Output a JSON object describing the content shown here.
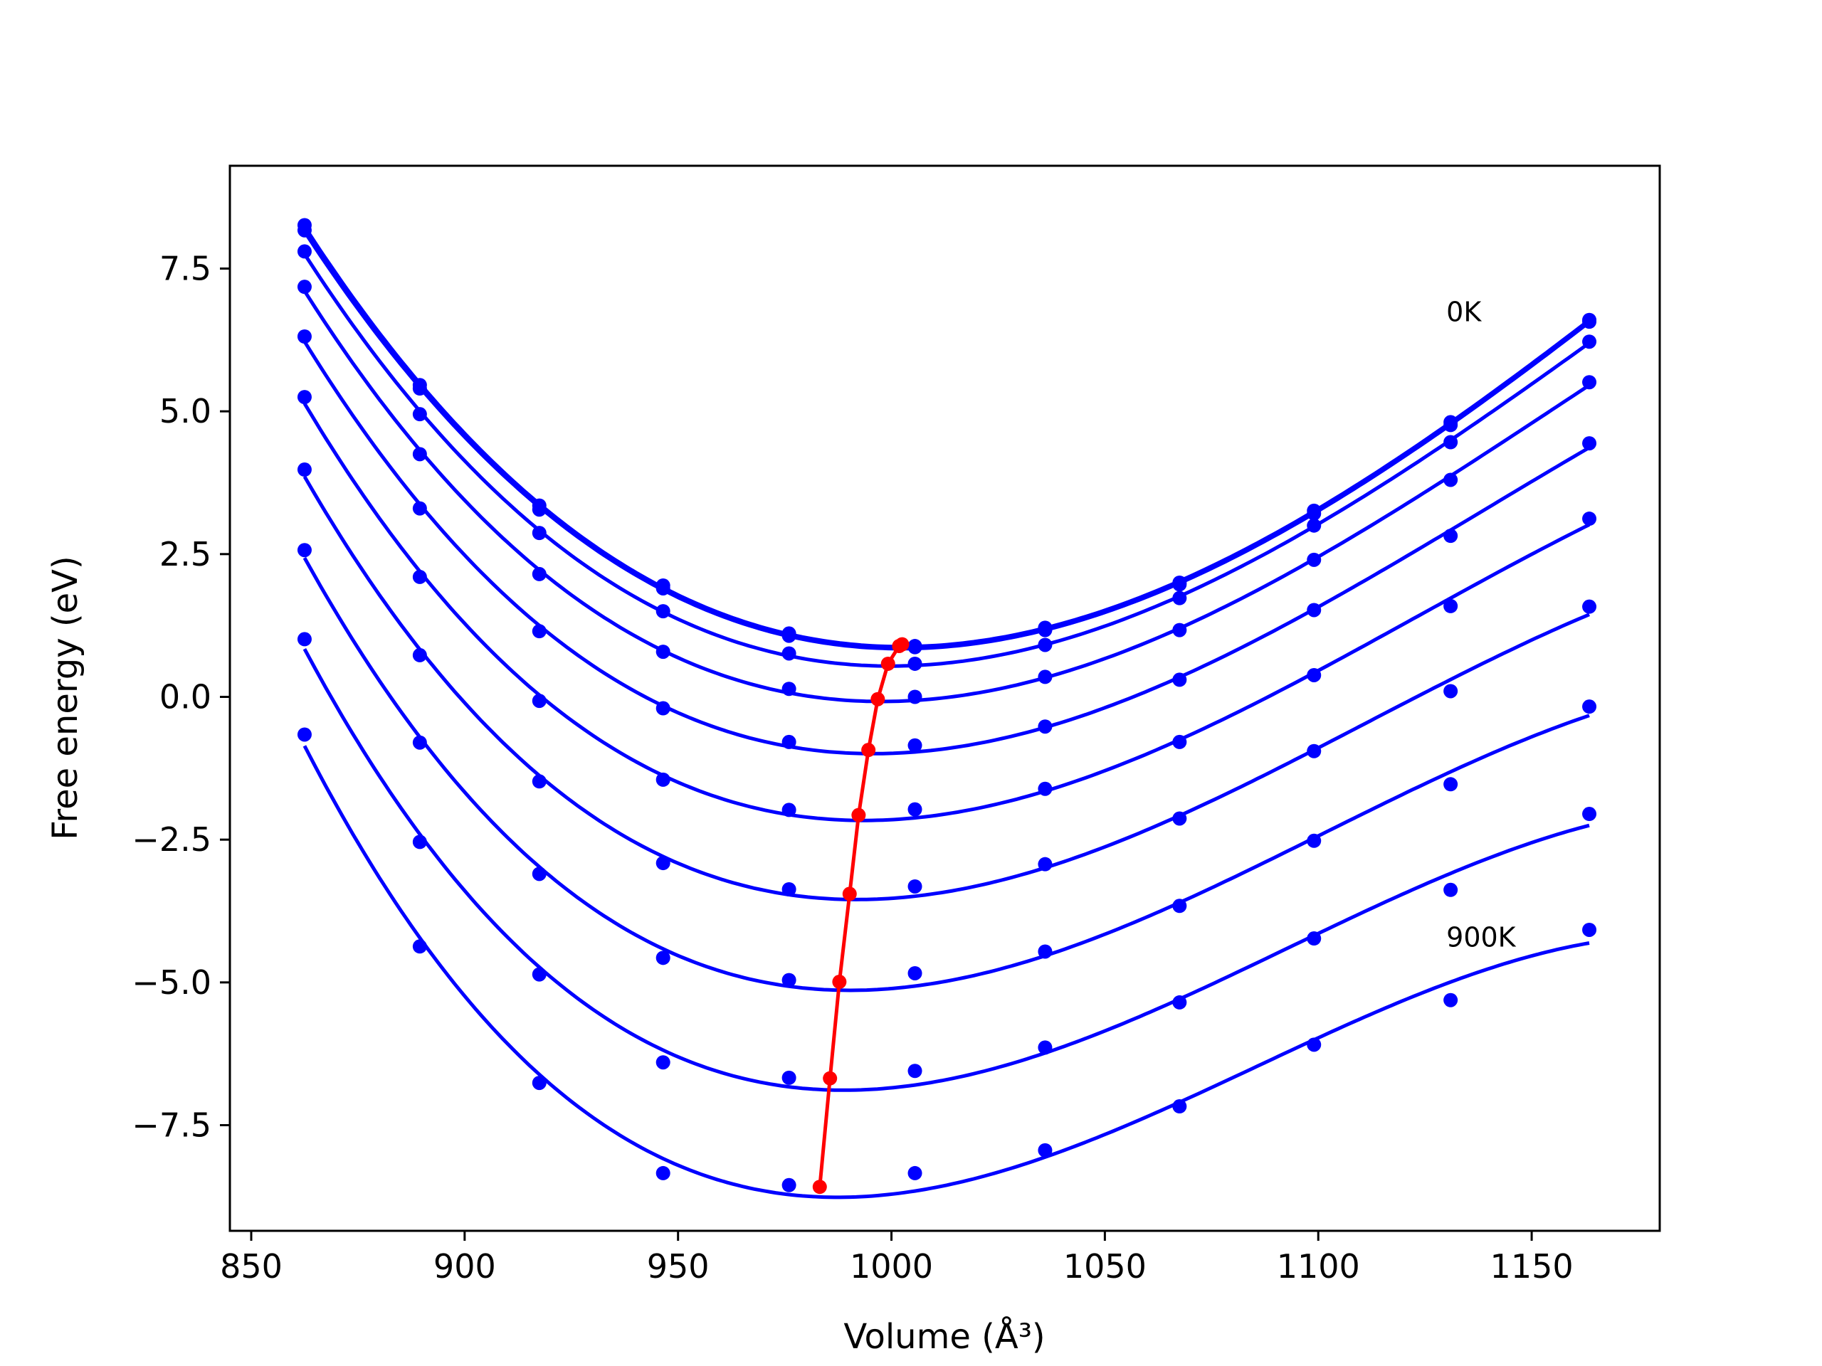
{
  "chart_data": {
    "type": "line",
    "title": "",
    "xlabel": "Volume (Å³)",
    "ylabel": "Free energy (eV)",
    "xlim": [
      845,
      1180
    ],
    "ylim": [
      -9.35,
      9.3
    ],
    "xticks": [
      850,
      900,
      950,
      1000,
      1050,
      1100,
      1150
    ],
    "xtick_labels": [
      "850",
      "900",
      "950",
      "1000",
      "1050",
      "1100",
      "1150"
    ],
    "yticks": [
      -7.5,
      -5.0,
      -2.5,
      0.0,
      2.5,
      5.0,
      7.5
    ],
    "ytick_labels": [
      "−7.5",
      "−5.0",
      "−2.5",
      "0.0",
      "2.5",
      "5.0",
      "7.5"
    ],
    "grid": false,
    "legend": false,
    "annotations": [
      {
        "text": "0K",
        "x": 1130,
        "y": 6.75
      },
      {
        "text": "900K",
        "x": 1130,
        "y": -4.2
      }
    ],
    "x": [
      862.5,
      889.5,
      917.5,
      946.5,
      976.0,
      1005.5,
      1036.0,
      1067.5,
      1099.0,
      1131.0,
      1163.5
    ],
    "series": [
      {
        "values": [
          8.26,
          5.46,
          3.35,
          1.95,
          1.11,
          0.89,
          1.21,
          2.0,
          3.26,
          4.81,
          6.6
        ]
      },
      {
        "values": [
          8.17,
          5.4,
          3.28,
          1.9,
          1.07,
          0.87,
          1.17,
          1.97,
          3.21,
          4.76,
          6.57
        ]
      },
      {
        "values": [
          7.8,
          4.95,
          2.87,
          1.5,
          0.76,
          0.58,
          0.91,
          1.73,
          3.0,
          4.46,
          6.22
        ]
      },
      {
        "values": [
          7.18,
          4.25,
          2.15,
          0.79,
          0.14,
          0.0,
          0.35,
          1.17,
          2.4,
          3.8,
          5.51
        ]
      },
      {
        "values": [
          6.31,
          3.3,
          1.15,
          -0.2,
          -0.79,
          -0.85,
          -0.52,
          0.3,
          1.52,
          2.82,
          4.44
        ]
      },
      {
        "values": [
          5.25,
          2.1,
          -0.07,
          -1.45,
          -1.98,
          -1.97,
          -1.61,
          -0.79,
          0.38,
          1.59,
          3.12
        ]
      },
      {
        "values": [
          3.98,
          0.73,
          -1.48,
          -2.91,
          -3.37,
          -3.32,
          -2.93,
          -2.13,
          -0.95,
          0.1,
          1.58
        ]
      },
      {
        "values": [
          2.57,
          -0.8,
          -3.1,
          -4.57,
          -4.96,
          -4.84,
          -4.46,
          -3.66,
          -2.52,
          -1.53,
          -0.17
        ]
      },
      {
        "values": [
          1.01,
          -2.54,
          -4.86,
          -6.4,
          -6.67,
          -6.55,
          -6.14,
          -5.35,
          -4.23,
          -3.38,
          -2.05
        ]
      },
      {
        "values": [
          -0.66,
          -4.37,
          -6.76,
          -8.34,
          -8.55,
          -8.34,
          -7.94,
          -7.17,
          -6.09,
          -5.31,
          -4.08
        ]
      }
    ],
    "minima": {
      "x": [
        1002.5,
        1001.8,
        999.2,
        996.8,
        994.6,
        992.3,
        990.2,
        987.8,
        985.6,
        983.2
      ],
      "y": [
        0.92,
        0.89,
        0.58,
        -0.04,
        -0.93,
        -2.07,
        -3.45,
        -4.99,
        -6.68,
        -8.58
      ]
    },
    "colors": {
      "series": "#0000ff",
      "minima": "#ff0000",
      "axes": "#000000"
    }
  }
}
